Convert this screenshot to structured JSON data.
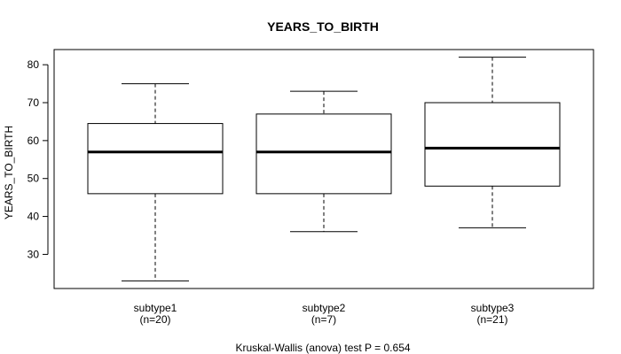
{
  "chart_data": {
    "type": "boxplot",
    "title": "YEARS_TO_BIRTH",
    "ylabel": "YEARS_TO_BIRTH",
    "xlabel": "",
    "ylim": [
      21,
      84
    ],
    "yticks": [
      30,
      40,
      50,
      60,
      70,
      80
    ],
    "grid": false,
    "groups": [
      {
        "label": "subtype1",
        "n_label": "(n=20)",
        "min": 23,
        "q1": 46,
        "median": 57,
        "q3": 64.5,
        "max": 75
      },
      {
        "label": "subtype2",
        "n_label": "(n=7)",
        "min": 36,
        "q1": 46,
        "median": 57,
        "q3": 67,
        "max": 73
      },
      {
        "label": "subtype3",
        "n_label": "(n=21)",
        "min": 37,
        "q1": 48,
        "median": 58,
        "q3": 70,
        "max": 82
      }
    ],
    "footnote": "Kruskal-Wallis (anova) test P = 0.654"
  }
}
